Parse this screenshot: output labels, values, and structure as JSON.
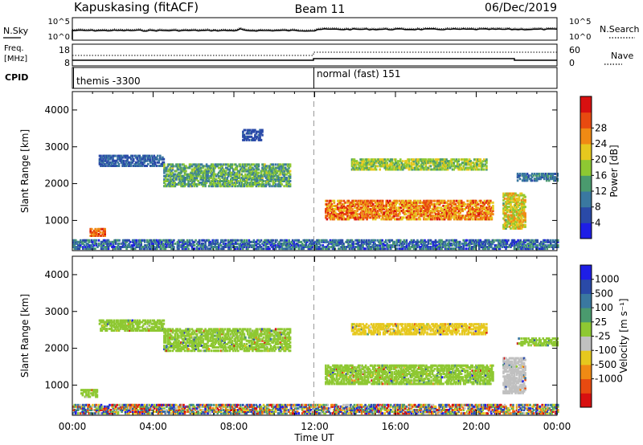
{
  "header": {
    "station": "Kapuskasing (fitACF)",
    "beam": "Beam 11",
    "date": "06/Dec/2019"
  },
  "noise_panel": {
    "left_label": "N.Sky",
    "right_label": "N.Search",
    "left_ticks": [
      "10^5",
      "10^0"
    ],
    "right_ticks": [
      "10^5",
      "10^0"
    ]
  },
  "freq_panel": {
    "left_label_1": "Freq.",
    "left_label_2": "[MHz]",
    "right_label": "Nave",
    "left_ticks": [
      "18",
      "8"
    ],
    "right_ticks": [
      "60",
      "0"
    ]
  },
  "cpid_panel": {
    "label": "CPID",
    "modes": [
      {
        "start_hour": 0,
        "text": "themis -3300"
      },
      {
        "start_hour": 12,
        "text": "normal (fast) 151"
      }
    ]
  },
  "colors": {
    "power": [
      "#1e1ee6",
      "#2a4aa8",
      "#3a78a0",
      "#4a9a6e",
      "#8ec832",
      "#e6c81e",
      "#f08a14",
      "#e84a10",
      "#d81010"
    ],
    "velocity": [
      "#1e1ee6",
      "#2a4aa8",
      "#3a78a0",
      "#4a9a6e",
      "#8ec832",
      "#c0c0c0",
      "#e6c81e",
      "#f08a14",
      "#e84a10",
      "#d81010"
    ]
  },
  "chart_data": [
    {
      "type": "heatmap",
      "quantity": "Power",
      "ylabel": "Slant Range [km]",
      "ylim": [
        180,
        4500
      ],
      "yticks": [
        1000,
        2000,
        3000,
        4000
      ],
      "xlim": [
        0,
        24
      ],
      "colorbar": {
        "label": "Power [dB]",
        "range": [
          0,
          32
        ],
        "ticks": [
          4,
          8,
          12,
          16,
          20,
          24,
          28
        ]
      },
      "echo_regions": [
        {
          "t_start": 0.0,
          "t_end": 24.0,
          "range_low": 200,
          "range_high": 450,
          "value_low": 2,
          "value_high": 14
        },
        {
          "t_start": 0.85,
          "t_end": 1.6,
          "range_low": 550,
          "range_high": 750,
          "value_low": 22,
          "value_high": 30
        },
        {
          "t_start": 1.3,
          "t_end": 4.5,
          "range_low": 2450,
          "range_high": 2750,
          "value_low": 4,
          "value_high": 10
        },
        {
          "t_start": 4.5,
          "t_end": 10.8,
          "range_low": 1900,
          "range_high": 2500,
          "value_low": 8,
          "value_high": 18
        },
        {
          "t_start": 8.4,
          "t_end": 9.4,
          "range_low": 3150,
          "range_high": 3450,
          "value_low": 4,
          "value_high": 8
        },
        {
          "t_start": 12.5,
          "t_end": 20.8,
          "range_low": 1000,
          "range_high": 1500,
          "value_low": 18,
          "value_high": 30
        },
        {
          "t_start": 13.8,
          "t_end": 20.5,
          "range_low": 2350,
          "range_high": 2650,
          "value_low": 12,
          "value_high": 20
        },
        {
          "t_start": 21.3,
          "t_end": 22.4,
          "range_low": 750,
          "range_high": 1700,
          "value_low": 14,
          "value_high": 24
        },
        {
          "t_start": 22.0,
          "t_end": 24.0,
          "range_low": 2050,
          "range_high": 2250,
          "value_low": 6,
          "value_high": 12
        }
      ]
    },
    {
      "type": "heatmap",
      "quantity": "Velocity",
      "ylabel": "Slant Range [km]",
      "ylim": [
        180,
        4500
      ],
      "yticks": [
        1000,
        2000,
        3000,
        4000
      ],
      "xlim": [
        0,
        24
      ],
      "xticks": [
        "00:00",
        "04:00",
        "08:00",
        "12:00",
        "16:00",
        "20:00",
        "00:00"
      ],
      "xlabel": "Time UT",
      "colorbar": {
        "label": "Velocity [m s⁻¹]",
        "tick_labels": [
          "1000",
          "500",
          "100",
          "25",
          "-25",
          "-100",
          "-500",
          "-1000"
        ]
      },
      "echo_regions": [
        {
          "t_start": 0.0,
          "t_end": 24.0,
          "range_low": 200,
          "range_high": 450,
          "value": "mixed"
        },
        {
          "t_start": 0.4,
          "t_end": 1.2,
          "range_low": 650,
          "range_high": 850,
          "value": 0
        },
        {
          "t_start": 1.3,
          "t_end": 4.5,
          "range_low": 2450,
          "range_high": 2750,
          "value": 0
        },
        {
          "t_start": 4.5,
          "t_end": 10.8,
          "range_low": 1900,
          "range_high": 2500,
          "value": 0
        },
        {
          "t_start": 12.5,
          "t_end": 20.8,
          "range_low": 1000,
          "range_high": 1500,
          "value": 0
        },
        {
          "t_start": 13.8,
          "t_end": 20.5,
          "range_low": 2350,
          "range_high": 2650,
          "value": -150
        },
        {
          "t_start": 21.3,
          "t_end": 22.4,
          "range_low": 750,
          "range_high": 1700,
          "value": -50
        },
        {
          "t_start": 22.0,
          "t_end": 24.0,
          "range_low": 2050,
          "range_high": 2250,
          "value": 0
        }
      ]
    }
  ]
}
